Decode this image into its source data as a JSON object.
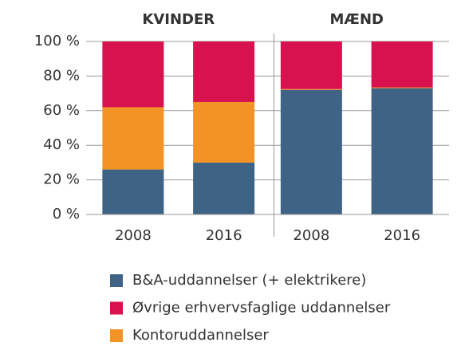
{
  "chart_data": {
    "type": "stacked_bar",
    "groups": [
      "KVINDER",
      "MÆND"
    ],
    "categories": [
      "2008",
      "2016",
      "2008",
      "2016"
    ],
    "series": [
      {
        "name": "B&A-uddannelser (+ elektrikere)",
        "color": "#3f6384",
        "values": [
          26,
          30,
          72,
          73
        ]
      },
      {
        "name": "Øvrige erhvervsfaglige uddannelser",
        "color": "#d8114f",
        "values": [
          38,
          35,
          27.5,
          26.5
        ]
      },
      {
        "name": "Kontoruddannelser",
        "color": "#f39325",
        "values": [
          36,
          35,
          0.5,
          0.5
        ]
      }
    ],
    "ylim": [
      0,
      100
    ],
    "yticks": [
      {
        "value": 0,
        "label": "0 %"
      },
      {
        "value": 20,
        "label": "20 %"
      },
      {
        "value": 40,
        "label": "40 %"
      },
      {
        "value": 60,
        "label": "60 %"
      },
      {
        "value": 80,
        "label": "80 %"
      },
      {
        "value": 100,
        "label": "100 %"
      }
    ],
    "grid": true
  }
}
